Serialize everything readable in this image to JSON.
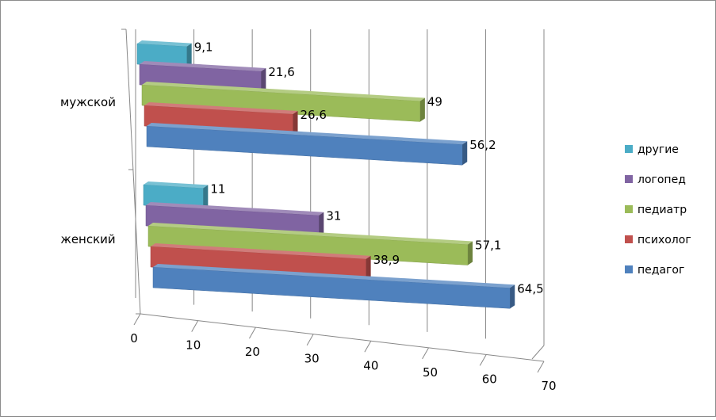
{
  "chart_data": {
    "type": "bar",
    "orientation": "horizontal",
    "style": "3d-clustered",
    "categories": [
      "женский",
      "мужской"
    ],
    "series": [
      {
        "name": "педагог",
        "color": "#4f81bd",
        "values": [
          64.5,
          56.2
        ],
        "labels": [
          "64,5",
          "56,2"
        ]
      },
      {
        "name": "психолог",
        "color": "#c0504d",
        "values": [
          38.9,
          26.6
        ],
        "labels": [
          "38,9",
          "26,6"
        ]
      },
      {
        "name": "педиатр",
        "color": "#9bbb59",
        "values": [
          57.1,
          49
        ],
        "labels": [
          "57,1",
          "49"
        ]
      },
      {
        "name": "логопед",
        "color": "#8064a2",
        "values": [
          31,
          21.6
        ],
        "labels": [
          "31",
          "21,6"
        ]
      },
      {
        "name": "другие",
        "color": "#4bacc6",
        "values": [
          11,
          9.1
        ],
        "labels": [
          "11",
          "9,1"
        ]
      }
    ],
    "xlim": [
      0,
      70
    ],
    "xticks": [
      "0",
      "10",
      "20",
      "30",
      "40",
      "50",
      "60",
      "70"
    ],
    "grid": true,
    "legend": "right"
  }
}
